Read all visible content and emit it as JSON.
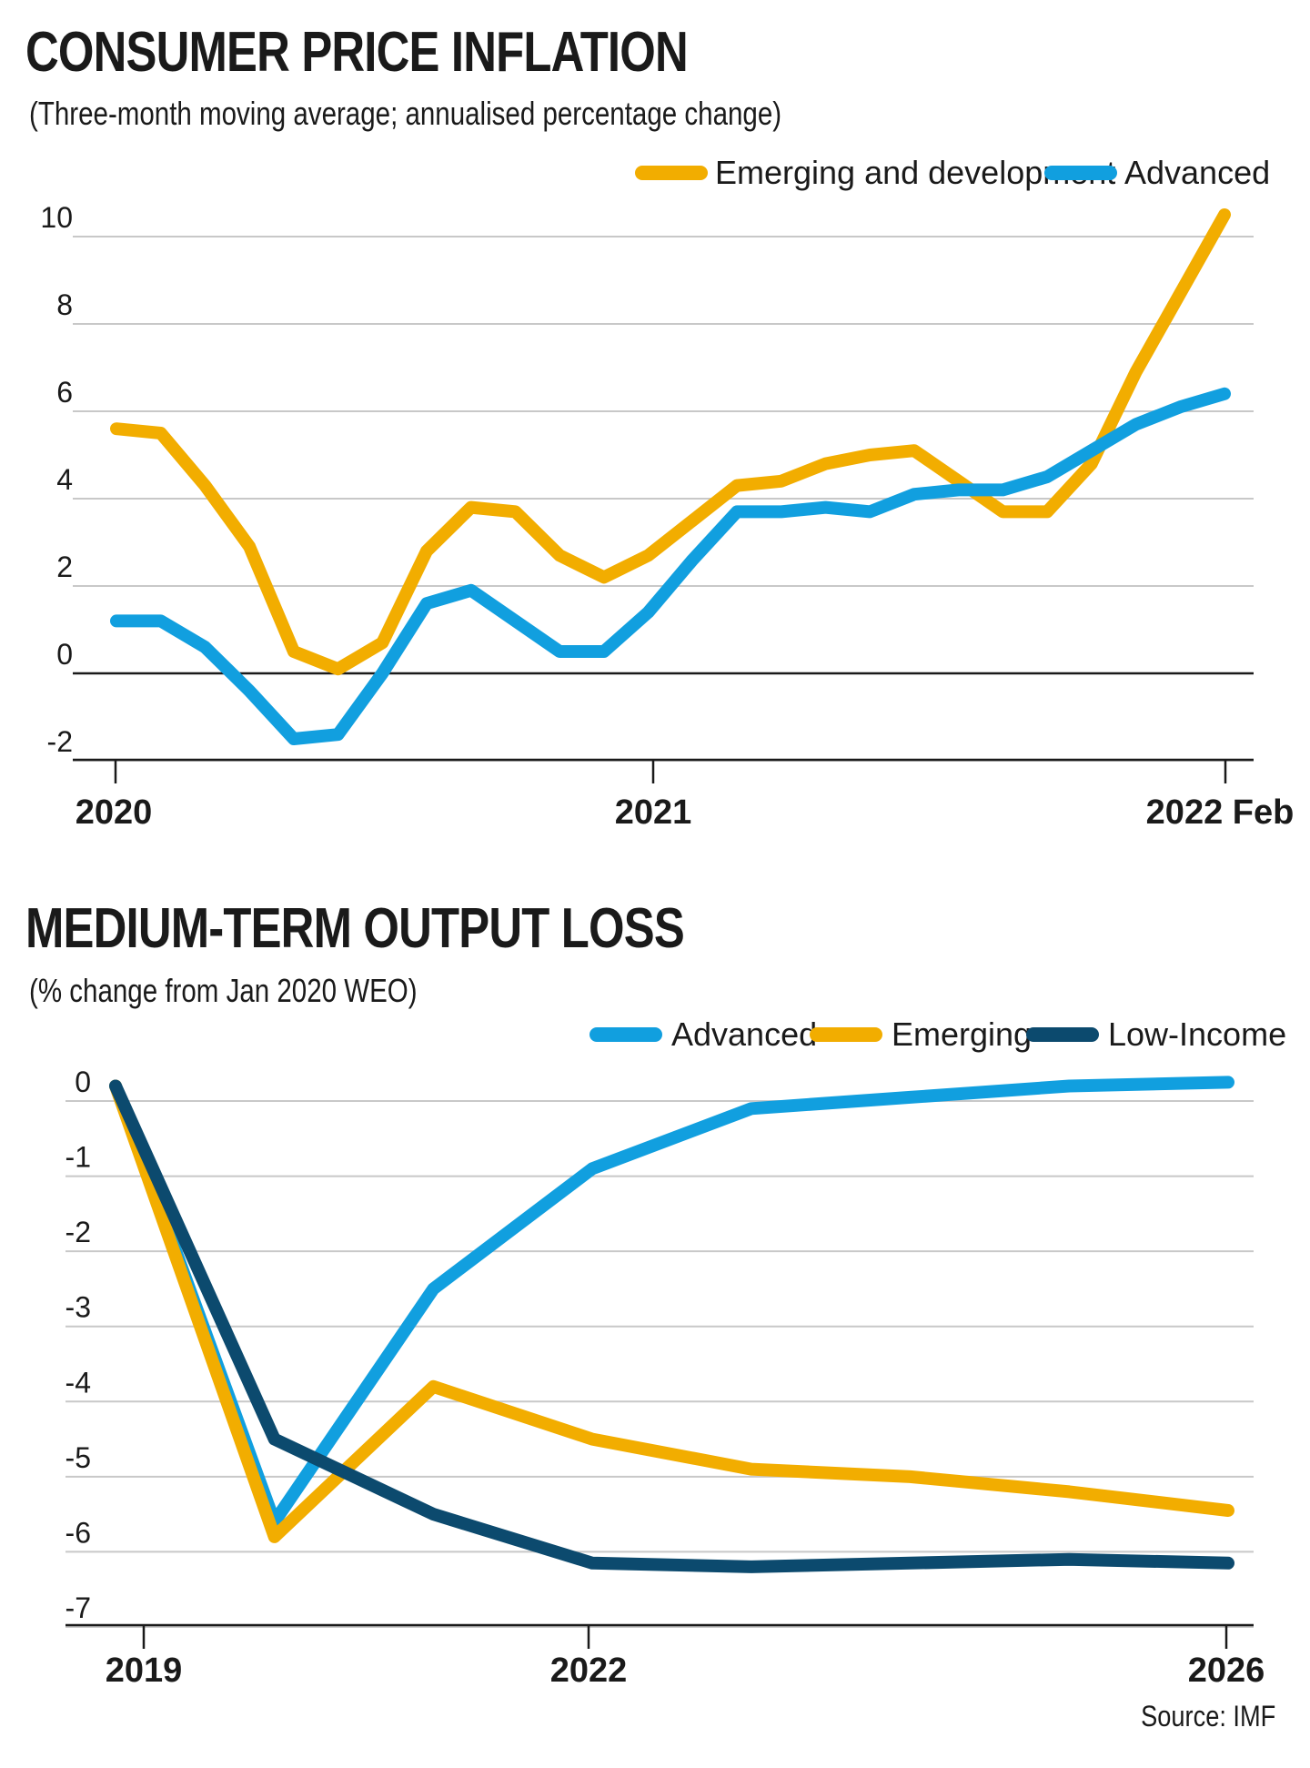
{
  "chart_data": [
    {
      "type": "line",
      "title": "CONSUMER PRICE INFLATION",
      "subtitle": "(Three-month moving average; annualised percentage change)",
      "ylim": [
        -2,
        10
      ],
      "yticks": [
        10,
        8,
        6,
        4,
        2,
        0,
        -2
      ],
      "xticks": [
        "2020",
        "2021",
        "2022 Feb"
      ],
      "grid": true,
      "legend": "top-right",
      "x": [
        0,
        1,
        2,
        3,
        4,
        5,
        6,
        7,
        8,
        9,
        10,
        11,
        12,
        13,
        14,
        15,
        16,
        17,
        18,
        19,
        20,
        21,
        22,
        23,
        24,
        25
      ],
      "series": [
        {
          "name": "Emerging and development",
          "color": "#f2ad00",
          "values": [
            5.6,
            5.5,
            4.3,
            2.9,
            0.5,
            0.1,
            0.7,
            2.8,
            3.8,
            3.7,
            2.7,
            2.2,
            2.7,
            3.5,
            4.3,
            4.4,
            4.8,
            5.0,
            5.1,
            4.4,
            3.7,
            3.7,
            4.8,
            6.9,
            8.7,
            10.5
          ]
        },
        {
          "name": "Advanced",
          "color": "#119fdf",
          "values": [
            1.2,
            1.2,
            0.6,
            -0.4,
            -1.5,
            -1.4,
            0.0,
            1.6,
            1.9,
            1.2,
            0.5,
            0.5,
            1.4,
            2.6,
            3.7,
            3.7,
            3.8,
            3.7,
            4.1,
            4.2,
            4.2,
            4.5,
            5.1,
            5.7,
            6.1,
            6.4
          ]
        }
      ]
    },
    {
      "type": "line",
      "title": "MEDIUM-TERM OUTPUT LOSS",
      "subtitle": "(% change from Jan 2020 WEO)",
      "ylim": [
        -7,
        0
      ],
      "yticks": [
        0,
        -1,
        -2,
        -3,
        -4,
        -5,
        -6,
        -7
      ],
      "xticks": [
        "2019",
        "2022",
        "2026"
      ],
      "grid": true,
      "legend": "top-right",
      "x": [
        2019,
        2020,
        2021,
        2022,
        2023,
        2024,
        2025,
        2026
      ],
      "series": [
        {
          "name": "Advanced",
          "color": "#119fdf",
          "values": [
            0.2,
            -5.6,
            -2.5,
            -0.9,
            -0.1,
            0.05,
            0.2,
            0.25
          ]
        },
        {
          "name": "Emerging",
          "color": "#f2ad00",
          "values": [
            0.2,
            -5.8,
            -3.8,
            -4.5,
            -4.9,
            -5.0,
            -5.2,
            -5.45
          ]
        },
        {
          "name": "Low-Income",
          "color": "#0c4a6e",
          "values": [
            0.2,
            -4.5,
            -5.5,
            -6.15,
            -6.2,
            -6.15,
            -6.1,
            -6.15
          ]
        }
      ]
    }
  ],
  "source": "Source: IMF"
}
